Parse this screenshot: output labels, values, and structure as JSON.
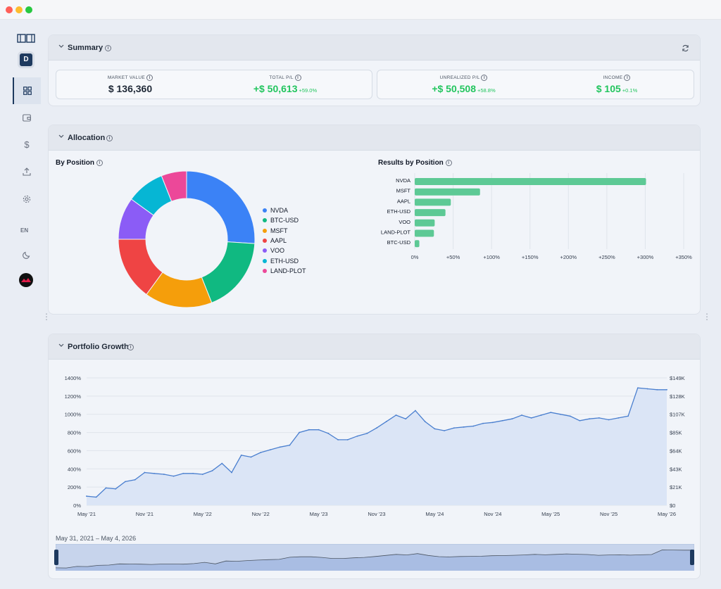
{
  "sidebar": {
    "avatar": "D",
    "lang": "EN",
    "items": [
      {
        "icon": "dashboard-icon",
        "active": true
      },
      {
        "icon": "wallet-icon",
        "active": false
      },
      {
        "icon": "dollar-icon",
        "active": false
      },
      {
        "icon": "upload-icon",
        "active": false
      },
      {
        "icon": "gear-icon",
        "active": false
      }
    ]
  },
  "summary": {
    "title": "Summary",
    "market_value": {
      "label": "MARKET VALUE",
      "value": "$ 136,360"
    },
    "total_pl": {
      "label": "TOTAL P/L",
      "value": "+$ 50,613",
      "pct": "+59.0%"
    },
    "unrealized_pl": {
      "label": "UNREALIZED P/L",
      "value": "+$ 50,508",
      "pct": "+58.8%"
    },
    "income": {
      "label": "INCOME",
      "value": "$ 105",
      "pct": "+0.1%"
    }
  },
  "allocation": {
    "title": "Allocation",
    "by_position_title": "By Position",
    "results_title": "Results by Position"
  },
  "growth": {
    "title": "Portfolio Growth",
    "range_label": "May 31, 2021 – May 4, 2026"
  },
  "colors": {
    "accent": "#1e3a5f",
    "positive": "#22c55e",
    "bar": "#5dc995",
    "line": "#4a7fcf"
  },
  "chart_data": [
    {
      "type": "pie",
      "title": "By Position",
      "categories": [
        "NVDA",
        "BTC-USD",
        "MSFT",
        "AAPL",
        "VOO",
        "ETH-USD",
        "LAND-PLOT"
      ],
      "values": [
        26,
        18,
        16,
        15,
        10,
        9,
        6
      ],
      "colors": [
        "#3b82f6",
        "#10b981",
        "#f59e0b",
        "#ef4444",
        "#8b5cf6",
        "#06b6d4",
        "#ec4899"
      ],
      "legend": "right"
    },
    {
      "type": "bar",
      "orientation": "horizontal",
      "title": "Results by Position",
      "categories": [
        "NVDA",
        "MSFT",
        "AAPL",
        "ETH-USD",
        "VOO",
        "LAND-PLOT",
        "BTC-USD"
      ],
      "values": [
        301,
        85,
        47,
        40,
        26,
        25,
        6
      ],
      "xticks": [
        "0%",
        "+50%",
        "+100%",
        "+150%",
        "+200%",
        "+250%",
        "+300%",
        "+350%"
      ],
      "xlim": [
        0,
        350
      ],
      "grid": true
    },
    {
      "type": "area",
      "title": "Portfolio Growth",
      "x": [
        "May '21",
        "Jun '21",
        "Jul '21",
        "Aug '21",
        "Sep '21",
        "Oct '21",
        "Nov '21",
        "Dec '21",
        "Jan '22",
        "Feb '22",
        "Mar '22",
        "Apr '22",
        "May '22",
        "Jun '22",
        "Jul '22",
        "Aug '22",
        "Sep '22",
        "Oct '22",
        "Nov '22",
        "Dec '22",
        "Jan '23",
        "Feb '23",
        "Mar '23",
        "Apr '23",
        "May '23",
        "Jun '23",
        "Jul '23",
        "Aug '23",
        "Sep '23",
        "Oct '23",
        "Nov '23",
        "Dec '23",
        "Jan '24",
        "Feb '24",
        "Mar '24",
        "Apr '24",
        "May '24",
        "Jun '24",
        "Jul '24",
        "Aug '24",
        "Sep '24",
        "Oct '24",
        "Nov '24",
        "Dec '24",
        "Jan '25",
        "Feb '25",
        "Mar '25",
        "Apr '25",
        "May '25",
        "Jun '25",
        "Jul '25",
        "Aug '25",
        "Sep '25",
        "Oct '25",
        "Nov '25",
        "Dec '25",
        "Jan '26",
        "Feb '26",
        "Mar '26",
        "Apr '26",
        "May '26"
      ],
      "values": [
        100,
        90,
        190,
        180,
        260,
        280,
        360,
        350,
        340,
        320,
        350,
        350,
        340,
        380,
        460,
        360,
        550,
        530,
        580,
        610,
        640,
        660,
        800,
        830,
        830,
        790,
        720,
        720,
        760,
        790,
        850,
        920,
        990,
        950,
        1040,
        920,
        840,
        820,
        850,
        860,
        870,
        900,
        910,
        930,
        950,
        990,
        960,
        990,
        1020,
        1000,
        980,
        930,
        950,
        960,
        940,
        960,
        980,
        1290,
        1280,
        1270,
        1270
      ],
      "xticks": [
        "May '21",
        "Nov '21",
        "May '22",
        "Nov '22",
        "May '23",
        "Nov '23",
        "May '24",
        "Nov '24",
        "May '25",
        "Nov '25",
        "May '26"
      ],
      "yticks_left": [
        "0%",
        "200%",
        "400%",
        "600%",
        "800%",
        "1000%",
        "1200%",
        "1400%"
      ],
      "yticks_right": [
        "$0",
        "$21K",
        "$43K",
        "$64K",
        "$85K",
        "$107K",
        "$128K",
        "$149K"
      ],
      "ylim": [
        0,
        1400
      ],
      "grid": true
    }
  ]
}
